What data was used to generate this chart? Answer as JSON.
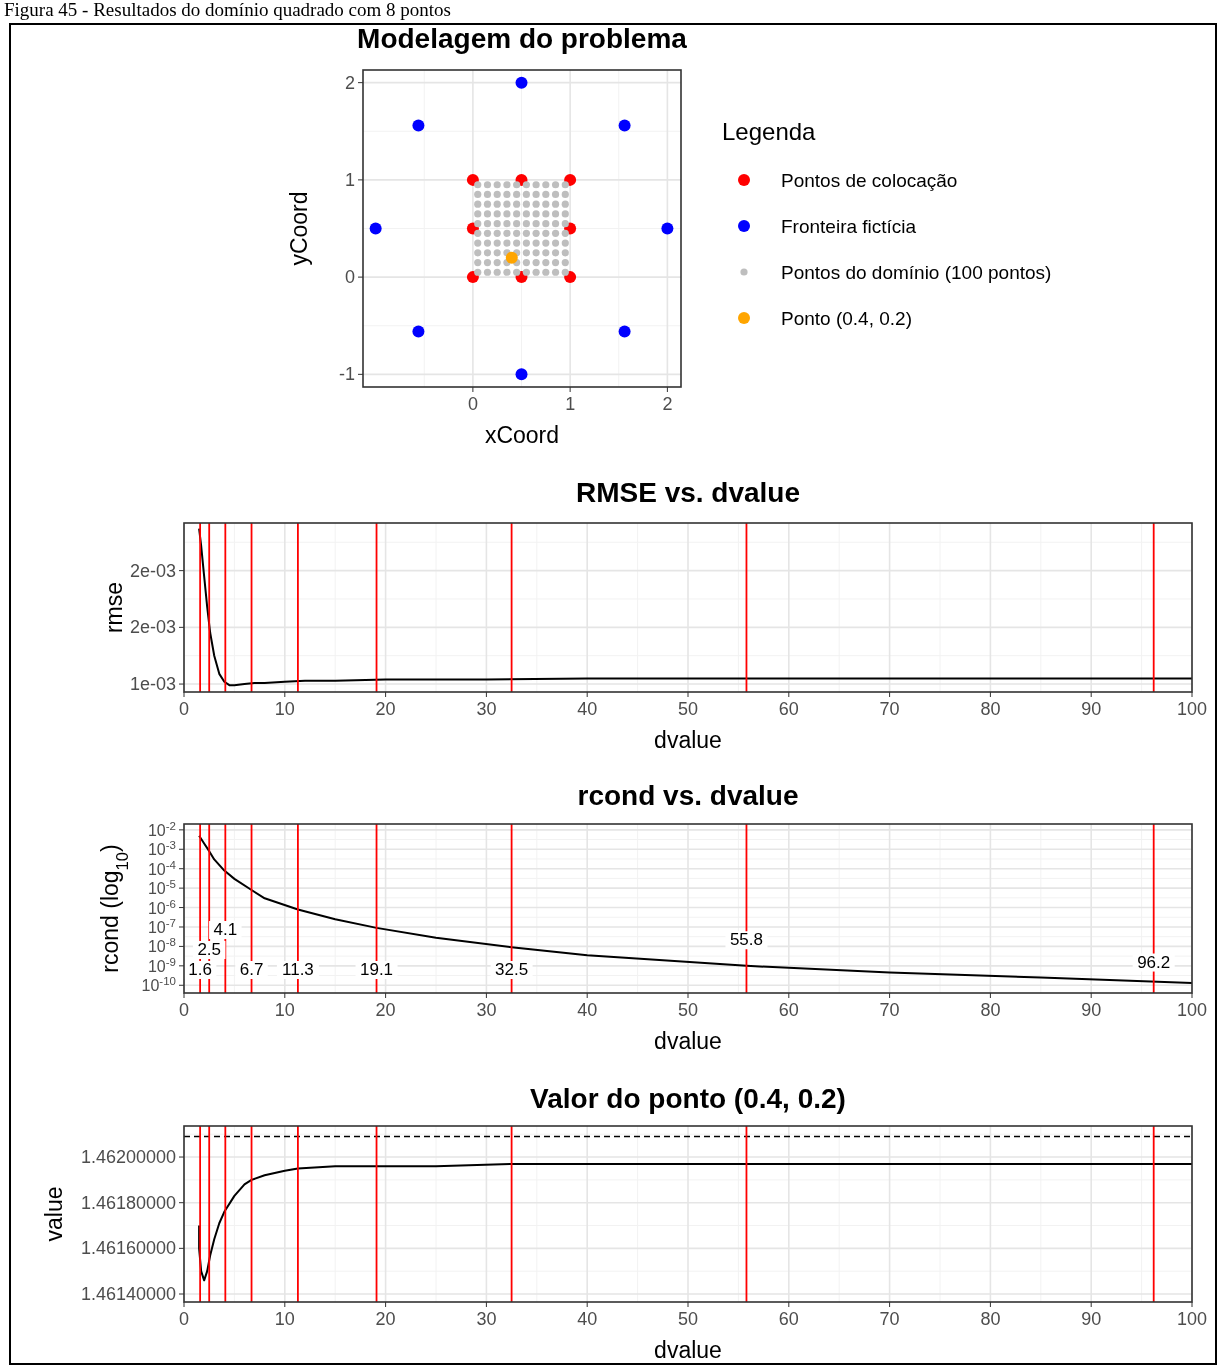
{
  "chart_data": [
    {
      "type": "scatter",
      "title": "Modelagem do problema",
      "xlabel": "xCoord",
      "ylabel": "yCoord",
      "legend_title": "Legenda",
      "legend": "right",
      "marker": "circle",
      "grid": true,
      "annotations": [
        "Figura 45 - Resultados do domínio quadrado com 8 pontos"
      ],
      "xlim": [
        -1.13,
        2.14
      ],
      "ylim": [
        -1.13,
        2.13
      ],
      "xticks": [
        0,
        1,
        2
      ],
      "yticks": [
        -1,
        0,
        1,
        2
      ],
      "series": [
        {
          "name": "Pontos de colocação",
          "color": "#ff0000",
          "x": [
            0,
            0.5,
            1,
            0,
            1,
            0,
            0.5,
            1
          ],
          "values": [
            0,
            0,
            0,
            0.5,
            0.5,
            1,
            1,
            1
          ]
        },
        {
          "name": "Fronteira fictícia",
          "color": "#0000ff",
          "x": [
            0.5,
            1.56,
            2,
            1.56,
            0.5,
            -0.56,
            -1,
            -0.56
          ],
          "values": [
            2,
            1.56,
            0.5,
            -0.56,
            -1,
            -0.56,
            0.5,
            1.56
          ]
        },
        {
          "name": "Pontos do domínio (100 pontos)",
          "color": "#bebebe",
          "x": [
            0.05,
            0.15,
            0.25,
            0.35,
            0.45,
            0.55,
            0.65,
            0.75,
            0.85,
            0.95,
            0.05,
            0.15,
            0.25,
            0.35,
            0.45,
            0.55,
            0.65,
            0.75,
            0.85,
            0.95,
            0.05,
            0.15,
            0.25,
            0.35,
            0.45,
            0.55,
            0.65,
            0.75,
            0.85,
            0.95,
            0.05,
            0.15,
            0.25,
            0.35,
            0.45,
            0.55,
            0.65,
            0.75,
            0.85,
            0.95,
            0.05,
            0.15,
            0.25,
            0.35,
            0.45,
            0.55,
            0.65,
            0.75,
            0.85,
            0.95,
            0.05,
            0.15,
            0.25,
            0.35,
            0.45,
            0.55,
            0.65,
            0.75,
            0.85,
            0.95,
            0.05,
            0.15,
            0.25,
            0.35,
            0.45,
            0.55,
            0.65,
            0.75,
            0.85,
            0.95,
            0.05,
            0.15,
            0.25,
            0.35,
            0.45,
            0.55,
            0.65,
            0.75,
            0.85,
            0.95,
            0.05,
            0.15,
            0.25,
            0.35,
            0.45,
            0.55,
            0.65,
            0.75,
            0.85,
            0.95,
            0.05,
            0.15,
            0.25,
            0.35,
            0.45,
            0.55,
            0.65,
            0.75,
            0.85,
            0.95
          ],
          "values": [
            0.05,
            0.05,
            0.05,
            0.05,
            0.05,
            0.05,
            0.05,
            0.05,
            0.05,
            0.05,
            0.15,
            0.15,
            0.15,
            0.15,
            0.15,
            0.15,
            0.15,
            0.15,
            0.15,
            0.15,
            0.25,
            0.25,
            0.25,
            0.25,
            0.25,
            0.25,
            0.25,
            0.25,
            0.25,
            0.25,
            0.35,
            0.35,
            0.35,
            0.35,
            0.35,
            0.35,
            0.35,
            0.35,
            0.35,
            0.35,
            0.45,
            0.45,
            0.45,
            0.45,
            0.45,
            0.45,
            0.45,
            0.45,
            0.45,
            0.45,
            0.55,
            0.55,
            0.55,
            0.55,
            0.55,
            0.55,
            0.55,
            0.55,
            0.55,
            0.55,
            0.65,
            0.65,
            0.65,
            0.65,
            0.65,
            0.65,
            0.65,
            0.65,
            0.65,
            0.65,
            0.75,
            0.75,
            0.75,
            0.75,
            0.75,
            0.75,
            0.75,
            0.75,
            0.75,
            0.75,
            0.85,
            0.85,
            0.85,
            0.85,
            0.85,
            0.85,
            0.85,
            0.85,
            0.85,
            0.85,
            0.95,
            0.95,
            0.95,
            0.95,
            0.95,
            0.95,
            0.95,
            0.95,
            0.95,
            0.95
          ]
        },
        {
          "name": "Ponto (0.4, 0.2)",
          "color": "#ffa500",
          "x": [
            0.4
          ],
          "values": [
            0.2
          ]
        }
      ]
    },
    {
      "type": "line",
      "title": "RMSE vs. dvalue",
      "xlabel": "dvalue",
      "ylabel": "rmse",
      "grid": true,
      "xlim": [
        0,
        100
      ],
      "ylim": [
        0.00093,
        0.00242
      ],
      "xticks": [
        0,
        10,
        20,
        30,
        40,
        50,
        60,
        70,
        80,
        90,
        100
      ],
      "yticks": [
        {
          "value": 0.001,
          "label": "1e-03"
        },
        {
          "value": 0.0015,
          "label": "2e-03"
        },
        {
          "value": 0.002,
          "label": "2e-03"
        }
      ],
      "ref_lines": [
        {
          "axis": "x",
          "value": 1.6,
          "color": "#ff0000"
        },
        {
          "axis": "x",
          "value": 2.5,
          "color": "#ff0000"
        },
        {
          "axis": "x",
          "value": 4.1,
          "color": "#ff0000"
        },
        {
          "axis": "x",
          "value": 6.7,
          "color": "#ff0000"
        },
        {
          "axis": "x",
          "value": 11.3,
          "color": "#ff0000"
        },
        {
          "axis": "x",
          "value": 19.1,
          "color": "#ff0000"
        },
        {
          "axis": "x",
          "value": 32.5,
          "color": "#ff0000"
        },
        {
          "axis": "x",
          "value": 55.8,
          "color": "#ff0000"
        },
        {
          "axis": "x",
          "value": 96.2,
          "color": "#ff0000"
        }
      ],
      "series": [
        {
          "color": "#000000",
          "x": [
            1.5,
            1.7,
            2,
            2.3,
            2.6,
            3,
            3.5,
            4,
            4.5,
            5,
            6,
            7,
            8,
            10,
            12,
            15,
            20,
            30,
            40,
            60,
            80,
            100
          ],
          "values": [
            0.00237,
            0.00222,
            0.00195,
            0.00168,
            0.00145,
            0.00125,
            0.00109,
            0.00102,
            0.00099,
            0.00099,
            0.001,
            0.00101,
            0.00101,
            0.00102,
            0.00103,
            0.00103,
            0.00104,
            0.00104,
            0.00105,
            0.00105,
            0.00105,
            0.00105
          ]
        }
      ]
    },
    {
      "type": "line",
      "title": "rcond vs. dvalue",
      "xlabel": "dvalue",
      "ylabel": "rcond  (log$_{10}$)",
      "grid": true,
      "log": "y",
      "xlim": [
        0,
        100
      ],
      "ylim": [
        4e-11,
        0.02
      ],
      "xticks": [
        0,
        10,
        20,
        30,
        40,
        50,
        60,
        70,
        80,
        90,
        100
      ],
      "yticks": [
        {
          "value": 1e-10,
          "label": "10$^{-10}$"
        },
        {
          "value": 1e-09,
          "label": "10$^{-9}$"
        },
        {
          "value": 1e-08,
          "label": "10$^{-8}$"
        },
        {
          "value": 1e-07,
          "label": "10$^{-7}$"
        },
        {
          "value": 1e-06,
          "label": "10$^{-6}$"
        },
        {
          "value": 1e-05,
          "label": "10$^{-5}$"
        },
        {
          "value": 0.0001,
          "label": "10$^{-4}$"
        },
        {
          "value": 0.001,
          "label": "10$^{-3}$"
        },
        {
          "value": 0.01,
          "label": "10$^{-2}$"
        }
      ],
      "ref_lines": [
        {
          "axis": "x",
          "value": 1.6,
          "label": "1.6",
          "color": "#ff0000"
        },
        {
          "axis": "x",
          "value": 2.5,
          "label": "2.5",
          "color": "#ff0000"
        },
        {
          "axis": "x",
          "value": 4.1,
          "label": "4.1",
          "color": "#ff0000"
        },
        {
          "axis": "x",
          "value": 6.7,
          "label": "6.7",
          "color": "#ff0000"
        },
        {
          "axis": "x",
          "value": 11.3,
          "label": "11.3",
          "color": "#ff0000"
        },
        {
          "axis": "x",
          "value": 19.1,
          "label": "19.1",
          "color": "#ff0000"
        },
        {
          "axis": "x",
          "value": 32.5,
          "label": "32.5",
          "color": "#ff0000"
        },
        {
          "axis": "x",
          "value": 55.8,
          "label": "55.8",
          "color": "#ff0000"
        },
        {
          "axis": "x",
          "value": 96.2,
          "label": "96.2",
          "color": "#ff0000"
        }
      ],
      "series": [
        {
          "color": "#000000",
          "x": [
            1.5,
            2,
            2.5,
            3,
            4,
            5,
            6.7,
            8,
            11.3,
            15,
            19.1,
            25,
            32.5,
            40,
            55.8,
            70,
            85,
            100
          ],
          "values": [
            0.005,
            0.002,
            0.0008,
            0.0003,
            8e-05,
            3e-05,
            8e-06,
            3e-06,
            8e-07,
            2.5e-07,
            9e-08,
            2.8e-08,
            9e-09,
            3.5e-09,
            1e-09,
            4.5e-10,
            2.5e-10,
            1.3e-10
          ]
        }
      ]
    },
    {
      "type": "line",
      "title": "Valor do ponto (0.4, 0.2)",
      "xlabel": "dvalue",
      "ylabel": "value",
      "grid": true,
      "xlim": [
        0,
        100
      ],
      "ylim": [
        1.461365,
        1.462136
      ],
      "xticks": [
        0,
        10,
        20,
        30,
        40,
        50,
        60,
        70,
        80,
        90,
        100
      ],
      "yticks": [
        {
          "value": 1.4614,
          "label": "1.46140000"
        },
        {
          "value": 1.4616,
          "label": "1.46160000"
        },
        {
          "value": 1.4618,
          "label": "1.46180000"
        },
        {
          "value": 1.462,
          "label": "1.46200000"
        }
      ],
      "ref_lines": [
        {
          "axis": "y",
          "value": 1.46209,
          "color": "#000000",
          "line_style": "dashed"
        },
        {
          "axis": "x",
          "value": 1.6,
          "color": "#ff0000"
        },
        {
          "axis": "x",
          "value": 2.5,
          "color": "#ff0000"
        },
        {
          "axis": "x",
          "value": 4.1,
          "color": "#ff0000"
        },
        {
          "axis": "x",
          "value": 6.7,
          "color": "#ff0000"
        },
        {
          "axis": "x",
          "value": 11.3,
          "color": "#ff0000"
        },
        {
          "axis": "x",
          "value": 19.1,
          "color": "#ff0000"
        },
        {
          "axis": "x",
          "value": 32.5,
          "color": "#ff0000"
        },
        {
          "axis": "x",
          "value": 55.8,
          "color": "#ff0000"
        },
        {
          "axis": "x",
          "value": 96.2,
          "color": "#ff0000"
        }
      ],
      "series": [
        {
          "color": "#000000",
          "x": [
            1.5,
            1.5,
            1.7,
            2,
            2.3,
            2.6,
            3,
            3.5,
            4,
            5,
            6,
            6.7,
            8,
            10,
            11.3,
            15,
            19.1,
            25,
            32.5,
            50,
            75,
            100
          ],
          "values": [
            1.4617,
            1.4616,
            1.4615,
            1.46146,
            1.4615,
            1.46157,
            1.46164,
            1.46171,
            1.46176,
            1.46183,
            1.46188,
            1.4619,
            1.46192,
            1.46194,
            1.46195,
            1.46196,
            1.46196,
            1.46196,
            1.46197,
            1.46197,
            1.46197,
            1.46197
          ]
        }
      ]
    }
  ]
}
